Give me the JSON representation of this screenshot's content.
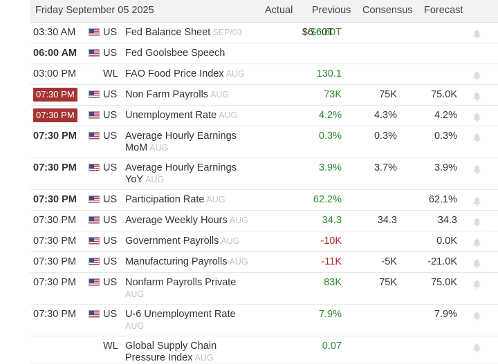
{
  "header": {
    "date": "Friday September 05 2025",
    "col_actual": "Actual",
    "col_previous": "Previous",
    "col_consensus": "Consensus",
    "col_forecast": "Forecast"
  },
  "colors": {
    "positive": "#2f8a2f",
    "negative": "#b22a2a",
    "badge": "#a83232"
  },
  "rows": [
    {
      "time": "03:30 AM",
      "time_style": "normal",
      "country": "US",
      "flag": "us-flag-icon",
      "event": "Fed Balance Sheet",
      "period": "SEP/03",
      "actual": "$6.60T",
      "previous": "$6.60T",
      "previous_tone": "positive",
      "consensus": "",
      "forecast": "",
      "bell": true
    },
    {
      "time": "06:00 AM",
      "time_style": "bold",
      "country": "US",
      "flag": "us-flag-icon",
      "event": "Fed Goolsbee Speech",
      "period": "",
      "actual": "",
      "previous": "",
      "previous_tone": "",
      "consensus": "",
      "forecast": "",
      "bell": false
    },
    {
      "time": "03:00 PM",
      "time_style": "normal",
      "country": "WL",
      "flag": "",
      "event": "FAO Food Price Index",
      "period": "AUG",
      "actual": "",
      "previous": "130.1",
      "previous_tone": "positive",
      "consensus": "",
      "forecast": "",
      "bell": true
    },
    {
      "time": "07:30 PM",
      "time_style": "badge",
      "country": "US",
      "flag": "us-flag-icon",
      "event": "Non Farm Payrolls",
      "period": "AUG",
      "actual": "",
      "previous": "73K",
      "previous_tone": "positive",
      "consensus": "75K",
      "forecast": "75.0K",
      "bell": true
    },
    {
      "time": "07:30 PM",
      "time_style": "badge",
      "country": "US",
      "flag": "us-flag-icon",
      "event": "Unemployment Rate",
      "period": "AUG",
      "actual": "",
      "previous": "4.2%",
      "previous_tone": "positive",
      "consensus": "4.3%",
      "forecast": "4.2%",
      "bell": true
    },
    {
      "time": "07:30 PM",
      "time_style": "bold",
      "country": "US",
      "flag": "us-flag-icon",
      "event": "Average Hourly Earnings MoM",
      "period": "AUG",
      "actual": "",
      "previous": "0.3%",
      "previous_tone": "positive",
      "consensus": "0.3%",
      "forecast": "0.3%",
      "bell": true
    },
    {
      "time": "07:30 PM",
      "time_style": "bold",
      "country": "US",
      "flag": "us-flag-icon",
      "event": "Average Hourly Earnings YoY",
      "period": "AUG",
      "actual": "",
      "previous": "3.9%",
      "previous_tone": "positive",
      "consensus": "3.7%",
      "forecast": "3.9%",
      "bell": true
    },
    {
      "time": "07:30 PM",
      "time_style": "bold",
      "country": "US",
      "flag": "us-flag-icon",
      "event": "Participation Rate",
      "period": "AUG",
      "actual": "",
      "previous": "62.2%",
      "previous_tone": "positive",
      "consensus": "",
      "forecast": "62.1%",
      "bell": true
    },
    {
      "time": "07:30 PM",
      "time_style": "normal",
      "country": "US",
      "flag": "us-flag-icon",
      "event": "Average Weekly Hours",
      "period": "AUG",
      "actual": "",
      "previous": "34.3",
      "previous_tone": "positive",
      "consensus": "34.3",
      "forecast": "34.3",
      "bell": true
    },
    {
      "time": "07:30 PM",
      "time_style": "normal",
      "country": "US",
      "flag": "us-flag-icon",
      "event": "Government Payrolls",
      "period": "AUG",
      "actual": "",
      "previous": "-10K",
      "previous_tone": "negative",
      "consensus": "",
      "forecast": "0.0K",
      "bell": true
    },
    {
      "time": "07:30 PM",
      "time_style": "normal",
      "country": "US",
      "flag": "us-flag-icon",
      "event": "Manufacturing Payrolls",
      "period": "AUG",
      "actual": "",
      "previous": "-11K",
      "previous_tone": "negative",
      "consensus": "-5K",
      "forecast": "-21.0K",
      "bell": true
    },
    {
      "time": "07:30 PM",
      "time_style": "normal",
      "country": "US",
      "flag": "us-flag-icon",
      "event": "Nonfarm Payrolls Private",
      "period": "AUG",
      "actual": "",
      "previous": "83K",
      "previous_tone": "positive",
      "consensus": "75K",
      "forecast": "75.0K",
      "bell": true
    },
    {
      "time": "07:30 PM",
      "time_style": "normal",
      "country": "US",
      "flag": "us-flag-icon",
      "event": "U-6 Unemployment Rate",
      "period": "AUG",
      "actual": "",
      "previous": "7.9%",
      "previous_tone": "positive",
      "consensus": "",
      "forecast": "7.9%",
      "bell": true
    },
    {
      "time": "",
      "time_style": "normal",
      "country": "WL",
      "flag": "",
      "event": "Global Supply Chain Pressure Index",
      "period": "AUG",
      "actual": "",
      "previous": "0.07",
      "previous_tone": "positive",
      "consensus": "",
      "forecast": "",
      "bell": true
    }
  ]
}
